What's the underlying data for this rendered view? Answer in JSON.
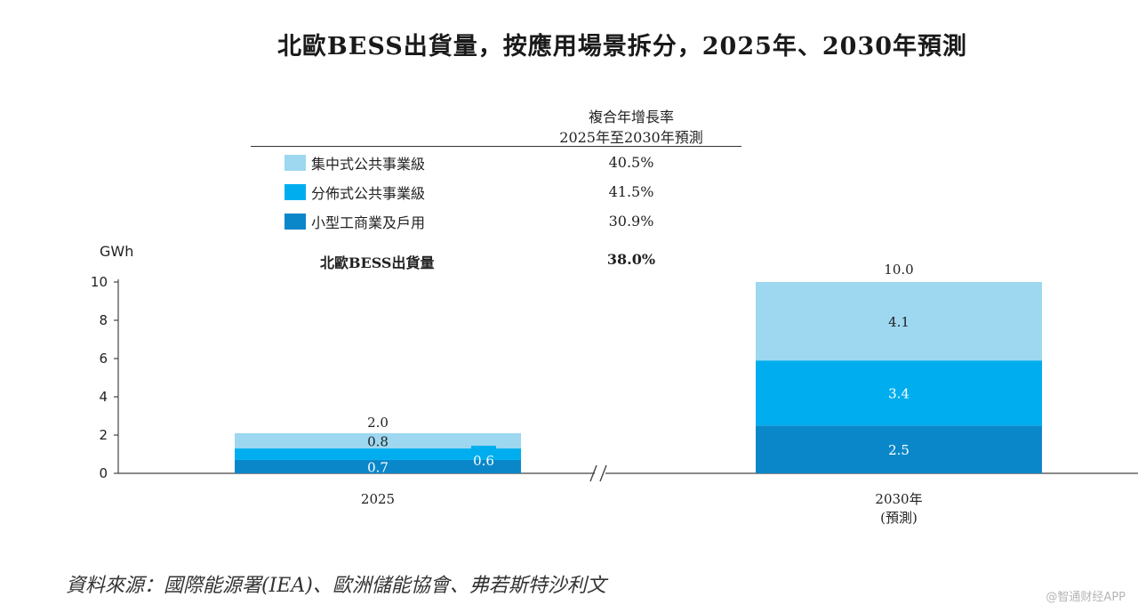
{
  "title": "北歐BESS出貨量，按應用場景拆分，2025年、2030年預測",
  "cagr_header": {
    "line1": "複合年增長率",
    "line2": "2025年至2030年預測"
  },
  "legend": [
    {
      "label": "集中式公共事業級",
      "cagr": "40.5%",
      "color": "#9dd7f0"
    },
    {
      "label": "分佈式公共事業級",
      "cagr": "41.5%",
      "color": "#00aeef"
    },
    {
      "label": "小型工商業及戶用",
      "cagr": "30.9%",
      "color": "#0a87c9"
    }
  ],
  "total": {
    "label": "北歐BESS出貨量",
    "cagr": "38.0%"
  },
  "source": "資料來源：國際能源署(IEA)、歐洲儲能協會、弗若斯特沙利文",
  "watermark": "@智通财经APP",
  "chart_data": {
    "type": "bar",
    "stacked": true,
    "ylabel": "GWh",
    "ylim": [
      0,
      10
    ],
    "yticks": [
      0,
      2,
      4,
      6,
      8,
      10
    ],
    "categories": [
      "2025",
      "2030年\n(預測)"
    ],
    "category_lines": [
      [
        "2025"
      ],
      [
        "2030年",
        "(預測)"
      ]
    ],
    "axis_break": true,
    "series": [
      {
        "name": "小型工商業及戶用",
        "values": [
          0.7,
          2.5
        ],
        "labels": [
          "0.7",
          "2.5"
        ],
        "color": "#0a87c9"
      },
      {
        "name": "分佈式公共事業級",
        "values": [
          0.6,
          3.4
        ],
        "labels": [
          "0.6",
          "3.4"
        ],
        "color": "#00aeef"
      },
      {
        "name": "集中式公共事業級",
        "values": [
          0.8,
          4.1
        ],
        "labels": [
          "0.8",
          "4.1"
        ],
        "color": "#9dd7f0"
      }
    ],
    "totals": [
      2.0,
      10.0
    ],
    "total_labels": [
      "2.0",
      "10.0"
    ]
  }
}
